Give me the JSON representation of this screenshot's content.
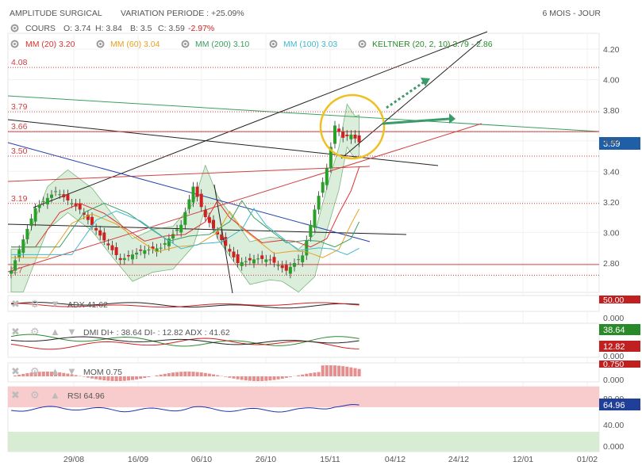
{
  "header": {
    "title": "AMPLITUDE SURGICAL",
    "variation": "VARIATION PERIODE : +25.09%",
    "period": "6 MOIS - JOUR"
  },
  "toolbar": {
    "cours": {
      "label": "COURS",
      "o": "O: 3.74",
      "h": "H: 3.84",
      "b": "B: 3.5",
      "c": "C: 3.59",
      "chg": "-2.97%"
    },
    "mm20": "MM (20)  3.20",
    "mm60": "MM (60)  3.04",
    "mm200": "MM (200)  3.10",
    "mm100": "MM (100)  3.03",
    "keltner": "KELTNER (20, 2, 10)  3.79 - 2.86"
  },
  "colors": {
    "mm20": "#e03030",
    "mm60": "#e8a020",
    "mm200": "#3aa060",
    "mm100": "#40b8d0",
    "keltner": "#2a8a2a",
    "up": "#2aa02a",
    "down": "#d02020",
    "last_price": "#1f5fa8"
  },
  "price_levels": [
    "4.08",
    "3.79",
    "3.66",
    "3.50",
    "3.19",
    "2.7"
  ],
  "last_price_label": "3.59",
  "chart_data": {
    "type": "candlestick",
    "x_ticks": [
      "29/08",
      "16/09",
      "06/10",
      "26/10",
      "15/11",
      "04/12",
      "24/12",
      "12/01",
      "01/02"
    ],
    "y_ticks": [
      "4.20",
      "4.00",
      "3.80",
      "3.60",
      "3.40",
      "3.20",
      "3.00",
      "2.80"
    ],
    "ylim": [
      2.67,
      4.27
    ],
    "approx_close_path": [
      [
        0,
        2.75
      ],
      [
        6,
        3.16
      ],
      [
        11,
        3.27
      ],
      [
        17,
        3.15
      ],
      [
        22,
        2.98
      ],
      [
        27,
        2.82
      ],
      [
        32,
        2.88
      ],
      [
        37,
        2.9
      ],
      [
        42,
        3.05
      ],
      [
        45,
        3.3
      ],
      [
        48,
        3.1
      ],
      [
        52,
        2.95
      ],
      [
        56,
        2.8
      ],
      [
        61,
        2.83
      ],
      [
        64,
        2.82
      ],
      [
        68,
        2.75
      ],
      [
        72,
        2.85
      ],
      [
        75,
        3.15
      ],
      [
        78,
        3.42
      ],
      [
        80,
        3.7
      ],
      [
        82,
        3.62
      ],
      [
        84,
        3.64
      ],
      [
        86,
        3.59
      ]
    ],
    "last_candle": {
      "open": 3.74,
      "high": 3.84,
      "low": 3.5,
      "close": 3.59
    }
  },
  "indicators": {
    "adx": "ADX  41.62",
    "dmi": "DMI  DI+ : 38.64  DI- : 12.82  ADX : 41.62",
    "mom": "MOM  0.75",
    "rsi": "RSI  64.96"
  },
  "indicator_axes": {
    "adx": {
      "top": "50.00",
      "bottom": "0.000"
    },
    "dmi": {
      "badge_up": "38.64",
      "badge_down": "12.82",
      "bottom": "0.000"
    },
    "mom": {
      "top": "0.750",
      "bottom": "0.000"
    },
    "rsi": {
      "top": "80.00",
      "badge": "64.96",
      "mid": "40.00",
      "bottom": "0.000"
    }
  }
}
